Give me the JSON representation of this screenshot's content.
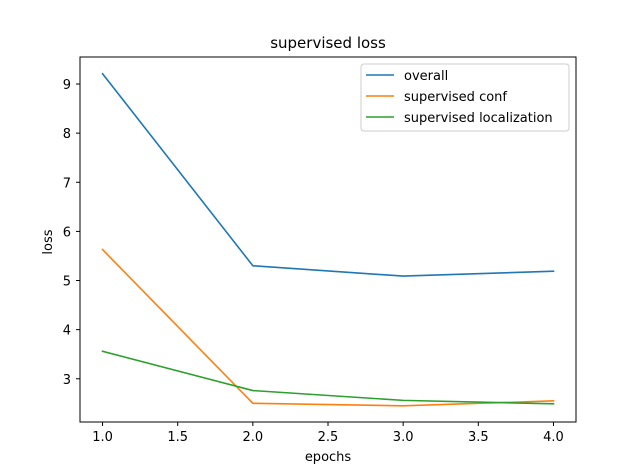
{
  "chart_data": {
    "type": "line",
    "title": "supervised loss",
    "xlabel": "epochs",
    "ylabel": "loss",
    "x": [
      1.0,
      2.0,
      3.0,
      4.0
    ],
    "xlim": [
      0.85,
      4.15
    ],
    "ylim": [
      2.12,
      9.55
    ],
    "xticks": [
      1.0,
      1.5,
      2.0,
      2.5,
      3.0,
      3.5,
      4.0
    ],
    "xtick_labels": [
      "1.0",
      "1.5",
      "2.0",
      "2.5",
      "3.0",
      "3.5",
      "4.0"
    ],
    "yticks": [
      3,
      4,
      5,
      6,
      7,
      8,
      9
    ],
    "ytick_labels": [
      "3",
      "4",
      "5",
      "6",
      "7",
      "8",
      "9"
    ],
    "grid": false,
    "legend_position": "top-right",
    "series": [
      {
        "name": "overall",
        "color": "#1f77b4",
        "values": [
          9.21,
          5.3,
          5.09,
          5.19
        ]
      },
      {
        "name": "supervised conf",
        "color": "#ff7f0e",
        "values": [
          5.63,
          2.5,
          2.45,
          2.55
        ]
      },
      {
        "name": "supervised localization",
        "color": "#2ca02c",
        "values": [
          3.56,
          2.76,
          2.56,
          2.49
        ]
      }
    ]
  }
}
